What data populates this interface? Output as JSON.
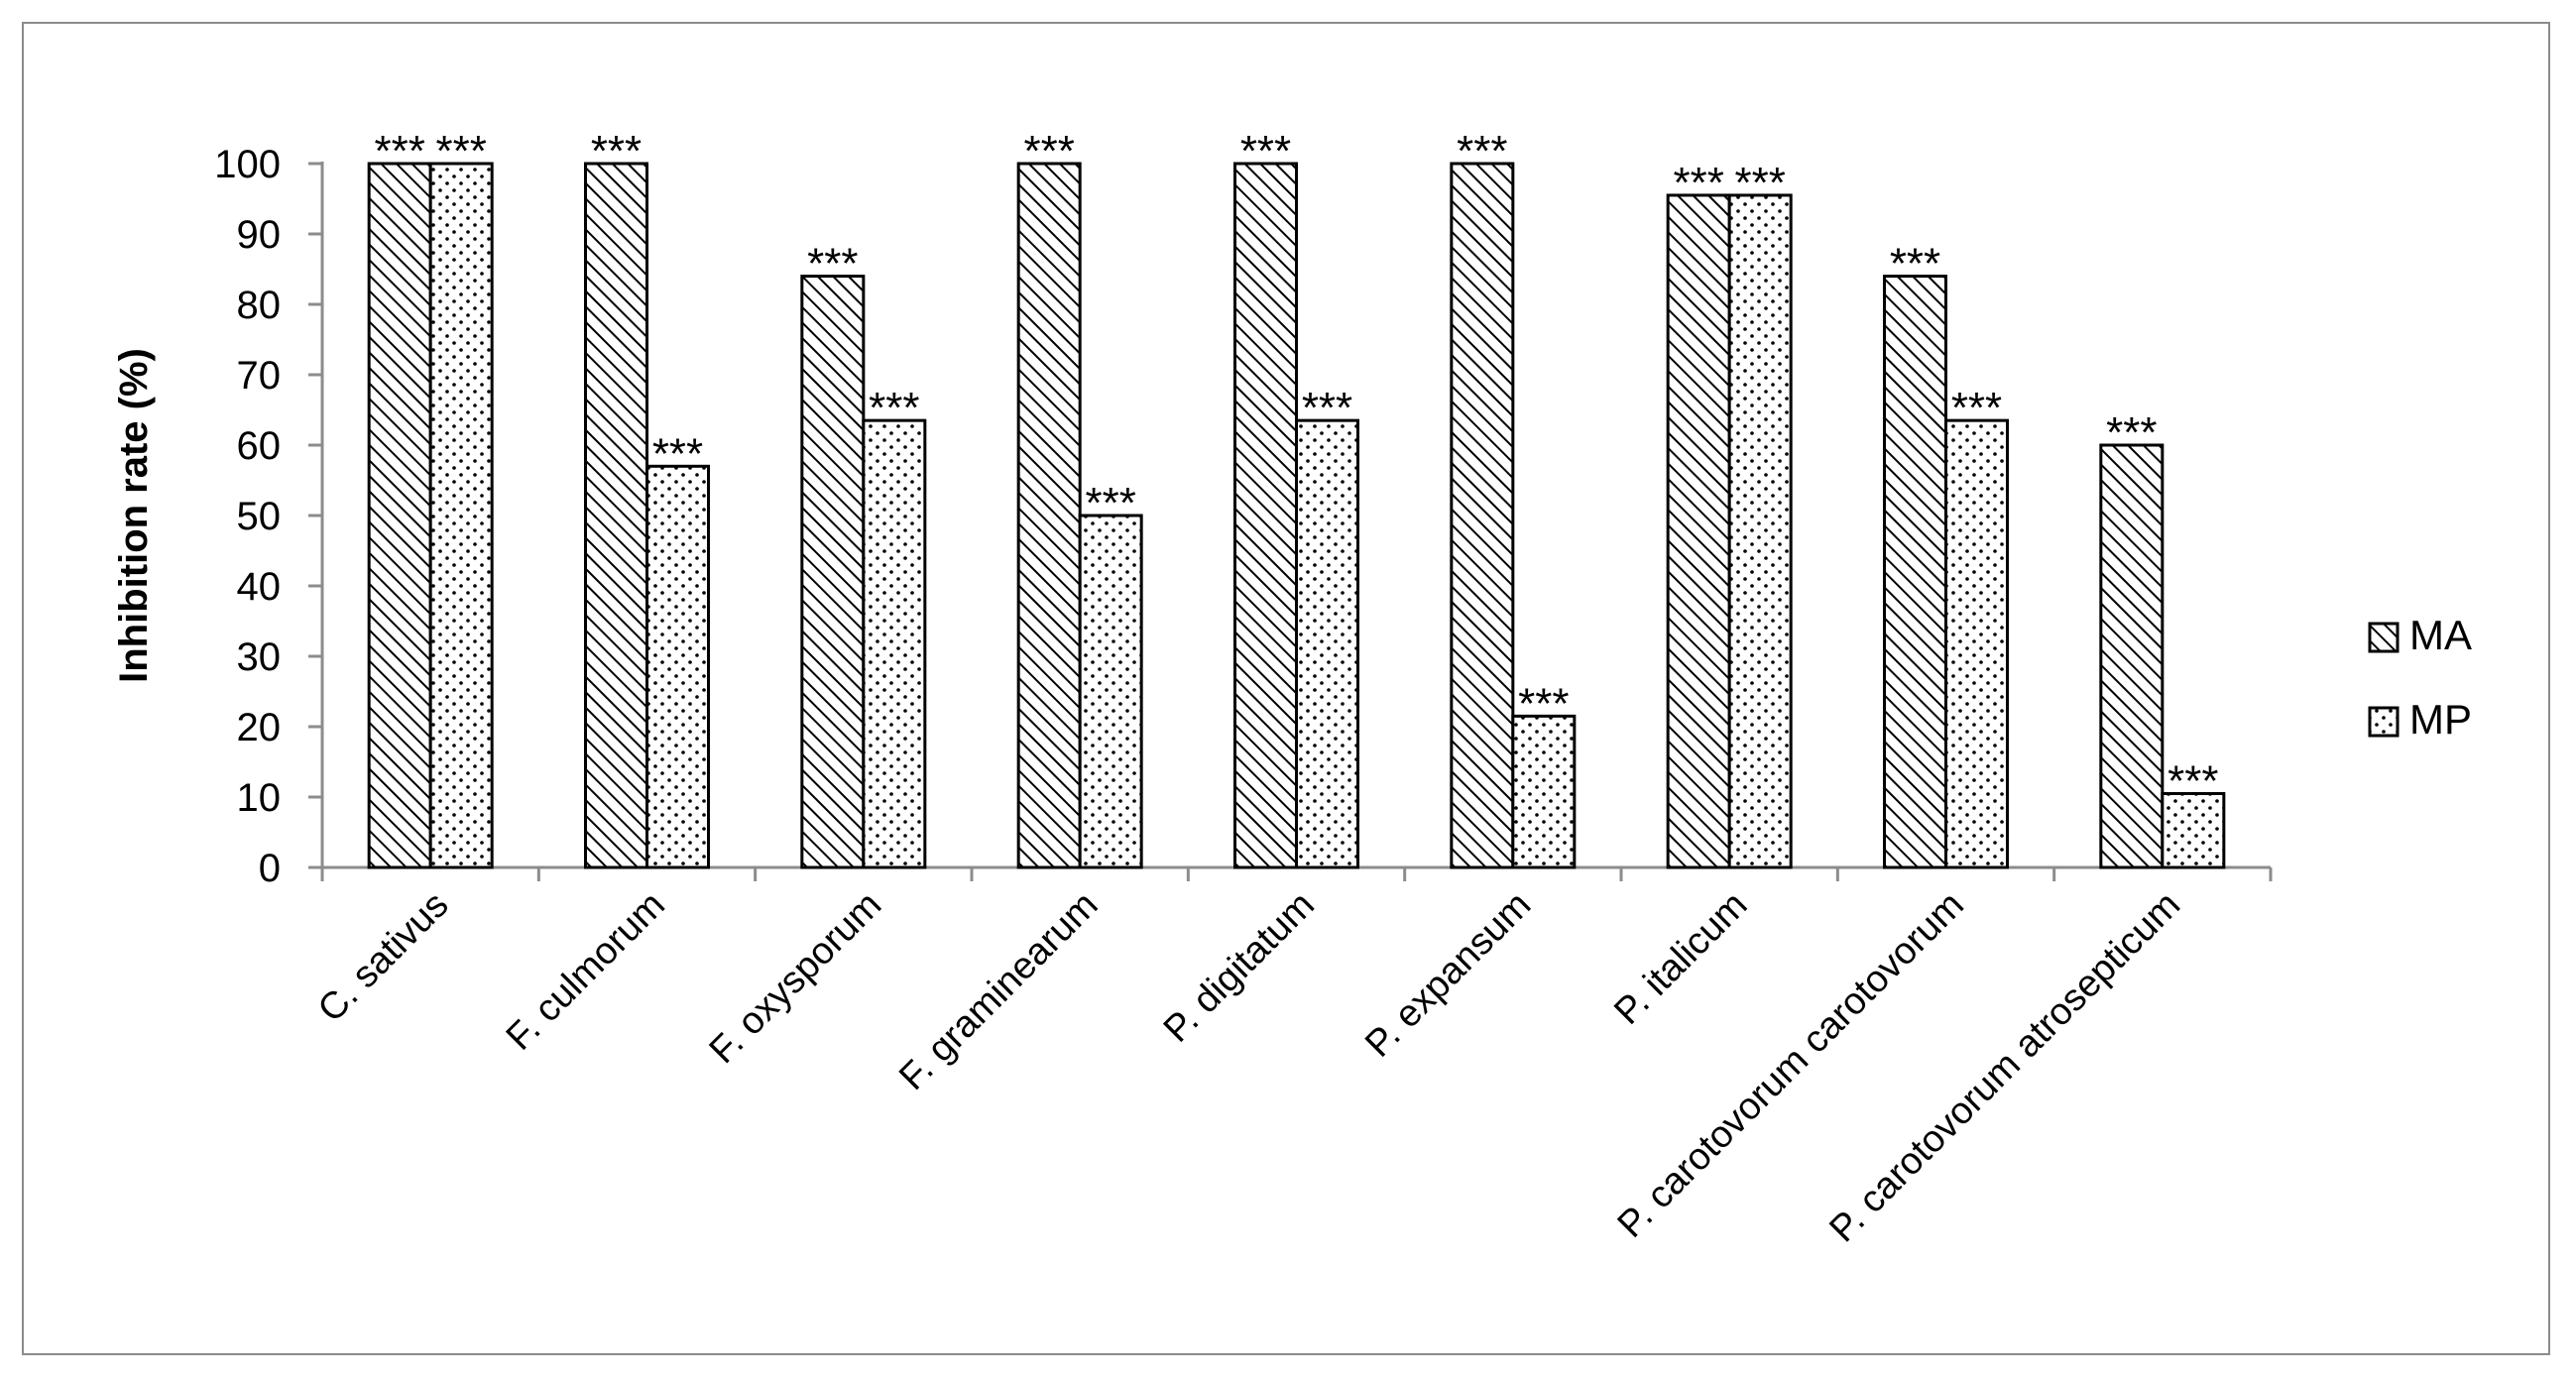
{
  "chart_data": {
    "type": "bar",
    "title": "",
    "xlabel": "",
    "ylabel": "Inhibition rate (%)",
    "ylim": [
      0,
      100
    ],
    "yticks": [
      0,
      10,
      20,
      30,
      40,
      50,
      60,
      70,
      80,
      90,
      100
    ],
    "grid": false,
    "legend_position": "right",
    "categories": [
      "C. sativus",
      "F. culmorum",
      "F. oxysporum",
      "F. graminearum",
      "P. digitatum",
      "P. expansum",
      "P. italicum",
      "P. carotovorum carotovorum",
      "P. carotovorum atrosepticum"
    ],
    "series": [
      {
        "name": "MA",
        "pattern": "diagonal-hatch",
        "values": [
          100,
          100,
          84,
          100,
          100,
          100,
          95.5,
          84,
          60
        ]
      },
      {
        "name": "MP",
        "pattern": "dotted",
        "values": [
          100,
          57,
          63.5,
          50,
          63.5,
          21.5,
          95.5,
          63.5,
          10.5
        ]
      }
    ],
    "annotation": "***",
    "colors": {
      "bar_stroke": "#000000",
      "axis": "#8c8c8c",
      "frame": "#8c8c8c"
    }
  }
}
